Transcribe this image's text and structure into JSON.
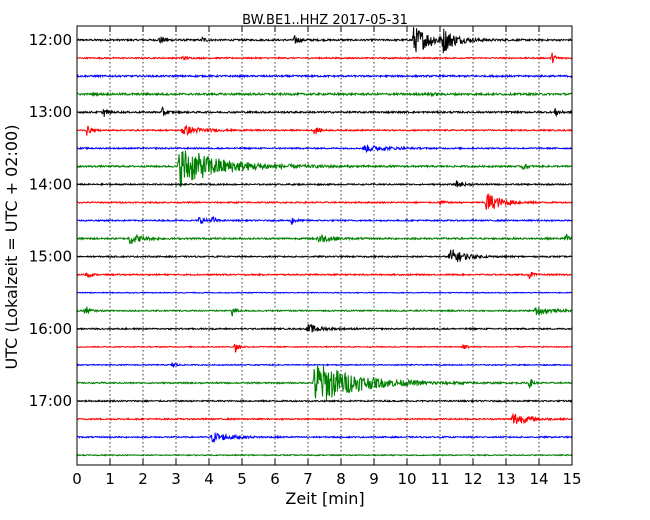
{
  "chart_data": {
    "type": "line",
    "title": "BW.BE1..HHZ 2017-05-31",
    "xlabel": "Zeit  [min]",
    "ylabel": "UTC (Lokalzeit = UTC + 02:00)",
    "xlim": [
      0,
      15
    ],
    "x_ticks": [
      "0",
      "1",
      "2",
      "3",
      "4",
      "5",
      "6",
      "7",
      "8",
      "9",
      "10",
      "11",
      "12",
      "13",
      "14",
      "15"
    ],
    "y_ticks": [
      "12:00",
      "13:00",
      "14:00",
      "15:00",
      "16:00",
      "17:00"
    ],
    "grid": "vertical dotted",
    "line_interval_minutes": 15,
    "traces": [
      {
        "start": "12:00",
        "color": "#000000",
        "noise": 0.1,
        "events": [
          {
            "t": 2.5,
            "a": 0.5,
            "d": 0.15
          },
          {
            "t": 3.8,
            "a": 0.35,
            "d": 0.1
          },
          {
            "t": 6.6,
            "a": 0.5,
            "d": 0.15
          },
          {
            "t": 10.2,
            "a": 1.6,
            "d": 0.6
          },
          {
            "t": 11.1,
            "a": 1.2,
            "d": 0.3
          }
        ]
      },
      {
        "start": "12:15",
        "color": "#ff0000",
        "noise": 0.08,
        "events": [
          {
            "t": 3.2,
            "a": 0.3,
            "d": 0.1
          },
          {
            "t": 14.4,
            "a": 0.6,
            "d": 0.1
          }
        ]
      },
      {
        "start": "12:30",
        "color": "#0000ff",
        "noise": 0.1,
        "events": [
          {
            "t": 15.0,
            "a": 0.4,
            "d": 0.3
          }
        ]
      },
      {
        "start": "12:45",
        "color": "#008000",
        "noise": 0.12,
        "events": [
          {
            "t": 10.7,
            "a": 0.4,
            "d": 0.1
          }
        ]
      },
      {
        "start": "13:00",
        "color": "#000000",
        "noise": 0.1,
        "events": [
          {
            "t": 0.8,
            "a": 0.6,
            "d": 0.1
          },
          {
            "t": 2.6,
            "a": 0.6,
            "d": 0.1
          },
          {
            "t": 14.5,
            "a": 0.5,
            "d": 0.1
          }
        ]
      },
      {
        "start": "13:15",
        "color": "#ff0000",
        "noise": 0.08,
        "events": [
          {
            "t": 0.3,
            "a": 0.6,
            "d": 0.1
          },
          {
            "t": 3.2,
            "a": 0.6,
            "d": 0.5
          },
          {
            "t": 7.2,
            "a": 0.6,
            "d": 0.1
          }
        ]
      },
      {
        "start": "13:30",
        "color": "#0000ff",
        "noise": 0.08,
        "events": [
          {
            "t": 8.7,
            "a": 0.4,
            "d": 0.6
          }
        ]
      },
      {
        "start": "13:45",
        "color": "#008000",
        "noise": 0.1,
        "events": [
          {
            "t": 3.1,
            "a": 2.4,
            "d": 1.2
          },
          {
            "t": 13.5,
            "a": 0.4,
            "d": 0.1
          }
        ]
      },
      {
        "start": "14:00",
        "color": "#000000",
        "noise": 0.08,
        "events": [
          {
            "t": 11.5,
            "a": 0.4,
            "d": 0.2
          }
        ]
      },
      {
        "start": "14:15",
        "color": "#ff0000",
        "noise": 0.08,
        "events": [
          {
            "t": 11.0,
            "a": 0.4,
            "d": 0.1
          },
          {
            "t": 12.4,
            "a": 1.3,
            "d": 0.4
          }
        ]
      },
      {
        "start": "14:30",
        "color": "#0000ff",
        "noise": 0.08,
        "events": [
          {
            "t": 3.7,
            "a": 0.5,
            "d": 0.15
          },
          {
            "t": 4.1,
            "a": 0.5,
            "d": 0.1
          },
          {
            "t": 6.5,
            "a": 0.5,
            "d": 0.1
          }
        ]
      },
      {
        "start": "14:45",
        "color": "#008000",
        "noise": 0.1,
        "events": [
          {
            "t": 1.6,
            "a": 0.7,
            "d": 0.3
          },
          {
            "t": 7.3,
            "a": 0.6,
            "d": 0.3
          },
          {
            "t": 14.8,
            "a": 0.6,
            "d": 0.1
          }
        ]
      },
      {
        "start": "15:00",
        "color": "#000000",
        "noise": 0.08,
        "events": [
          {
            "t": 11.3,
            "a": 1.0,
            "d": 0.4
          }
        ]
      },
      {
        "start": "15:15",
        "color": "#ff0000",
        "noise": 0.08,
        "events": [
          {
            "t": 0.3,
            "a": 0.4,
            "d": 0.1
          },
          {
            "t": 13.7,
            "a": 0.5,
            "d": 0.1
          }
        ]
      },
      {
        "start": "15:30",
        "color": "#0000ff",
        "noise": 0.05,
        "events": []
      },
      {
        "start": "15:45",
        "color": "#008000",
        "noise": 0.08,
        "events": [
          {
            "t": 0.25,
            "a": 0.7,
            "d": 0.1
          },
          {
            "t": 4.7,
            "a": 0.6,
            "d": 0.1
          },
          {
            "t": 13.9,
            "a": 0.5,
            "d": 0.4
          }
        ]
      },
      {
        "start": "16:00",
        "color": "#000000",
        "noise": 0.08,
        "events": [
          {
            "t": 7.0,
            "a": 0.5,
            "d": 0.4
          }
        ]
      },
      {
        "start": "16:15",
        "color": "#ff0000",
        "noise": 0.06,
        "events": [
          {
            "t": 4.8,
            "a": 0.8,
            "d": 0.1
          },
          {
            "t": 11.7,
            "a": 0.4,
            "d": 0.1
          }
        ]
      },
      {
        "start": "16:30",
        "color": "#0000ff",
        "noise": 0.06,
        "events": [
          {
            "t": 2.9,
            "a": 0.5,
            "d": 0.1
          }
        ]
      },
      {
        "start": "16:45",
        "color": "#008000",
        "noise": 0.08,
        "events": [
          {
            "t": 7.2,
            "a": 2.7,
            "d": 1.2
          },
          {
            "t": 13.7,
            "a": 0.6,
            "d": 0.1
          }
        ]
      },
      {
        "start": "17:00",
        "color": "#000000",
        "noise": 0.08,
        "events": []
      },
      {
        "start": "17:15",
        "color": "#ff0000",
        "noise": 0.08,
        "events": [
          {
            "t": 13.2,
            "a": 0.9,
            "d": 0.4
          }
        ]
      },
      {
        "start": "17:30",
        "color": "#0000ff",
        "noise": 0.08,
        "events": [
          {
            "t": 4.1,
            "a": 0.6,
            "d": 0.5
          }
        ]
      },
      {
        "start": "17:45",
        "color": "#008000",
        "noise": 0.06,
        "events": []
      }
    ]
  }
}
